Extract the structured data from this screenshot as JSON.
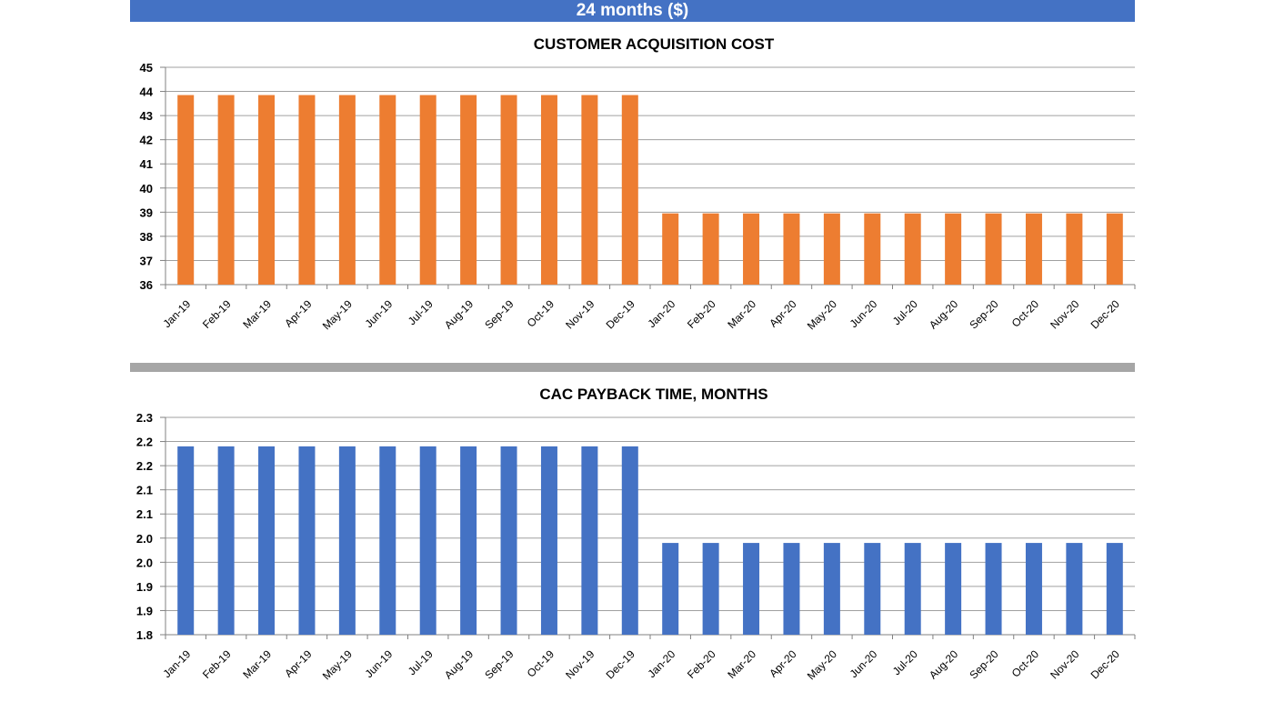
{
  "header": {
    "title": "24 months ($)"
  },
  "chart_data": [
    {
      "type": "bar",
      "title": "CUSTOMER ACQUISITION COST",
      "xlabel": "",
      "ylabel": "",
      "ylim": [
        36,
        45
      ],
      "yticks": [
        36,
        37,
        38,
        39,
        40,
        41,
        42,
        43,
        44,
        45
      ],
      "ytick_labels": [
        "36",
        "37",
        "38",
        "39",
        "40",
        "41",
        "42",
        "43",
        "44",
        "45"
      ],
      "grid": true,
      "color": "#ed7d31",
      "categories": [
        "Jan-19",
        "Feb-19",
        "Mar-19",
        "Apr-19",
        "May-19",
        "Jun-19",
        "Jul-19",
        "Aug-19",
        "Sep-19",
        "Oct-19",
        "Nov-19",
        "Dec-19",
        "Jan-20",
        "Feb-20",
        "Mar-20",
        "Apr-20",
        "May-20",
        "Jun-20",
        "Jul-20",
        "Aug-20",
        "Sep-20",
        "Oct-20",
        "Nov-20",
        "Dec-20"
      ],
      "values": [
        43.85,
        43.85,
        43.85,
        43.85,
        43.85,
        43.85,
        43.85,
        43.85,
        43.85,
        43.85,
        43.85,
        43.85,
        38.95,
        38.95,
        38.95,
        38.95,
        38.95,
        38.95,
        38.95,
        38.95,
        38.95,
        38.95,
        38.95,
        38.95
      ]
    },
    {
      "type": "bar",
      "title": "CAC PAYBACK TIME, MONTHS",
      "xlabel": "",
      "ylabel": "",
      "ylim": [
        1.8,
        2.25
      ],
      "yticks": [
        1.8,
        1.85,
        1.9,
        1.95,
        2.0,
        2.05,
        2.1,
        2.15,
        2.2,
        2.25
      ],
      "ytick_labels": [
        "1.8",
        "1.9",
        "1.9",
        "2.0",
        "2.0",
        "2.1",
        "2.1",
        "2.2",
        "2.2",
        "2.3"
      ],
      "grid": true,
      "color": "#4472c4",
      "categories": [
        "Jan-19",
        "Feb-19",
        "Mar-19",
        "Apr-19",
        "May-19",
        "Jun-19",
        "Jul-19",
        "Aug-19",
        "Sep-19",
        "Oct-19",
        "Nov-19",
        "Dec-19",
        "Jan-20",
        "Feb-20",
        "Mar-20",
        "Apr-20",
        "May-20",
        "Jun-20",
        "Jul-20",
        "Aug-20",
        "Sep-20",
        "Oct-20",
        "Nov-20",
        "Dec-20"
      ],
      "values": [
        2.19,
        2.19,
        2.19,
        2.19,
        2.19,
        2.19,
        2.19,
        2.19,
        2.19,
        2.19,
        2.19,
        2.19,
        1.99,
        1.99,
        1.99,
        1.99,
        1.99,
        1.99,
        1.99,
        1.99,
        1.99,
        1.99,
        1.99,
        1.99
      ]
    }
  ]
}
